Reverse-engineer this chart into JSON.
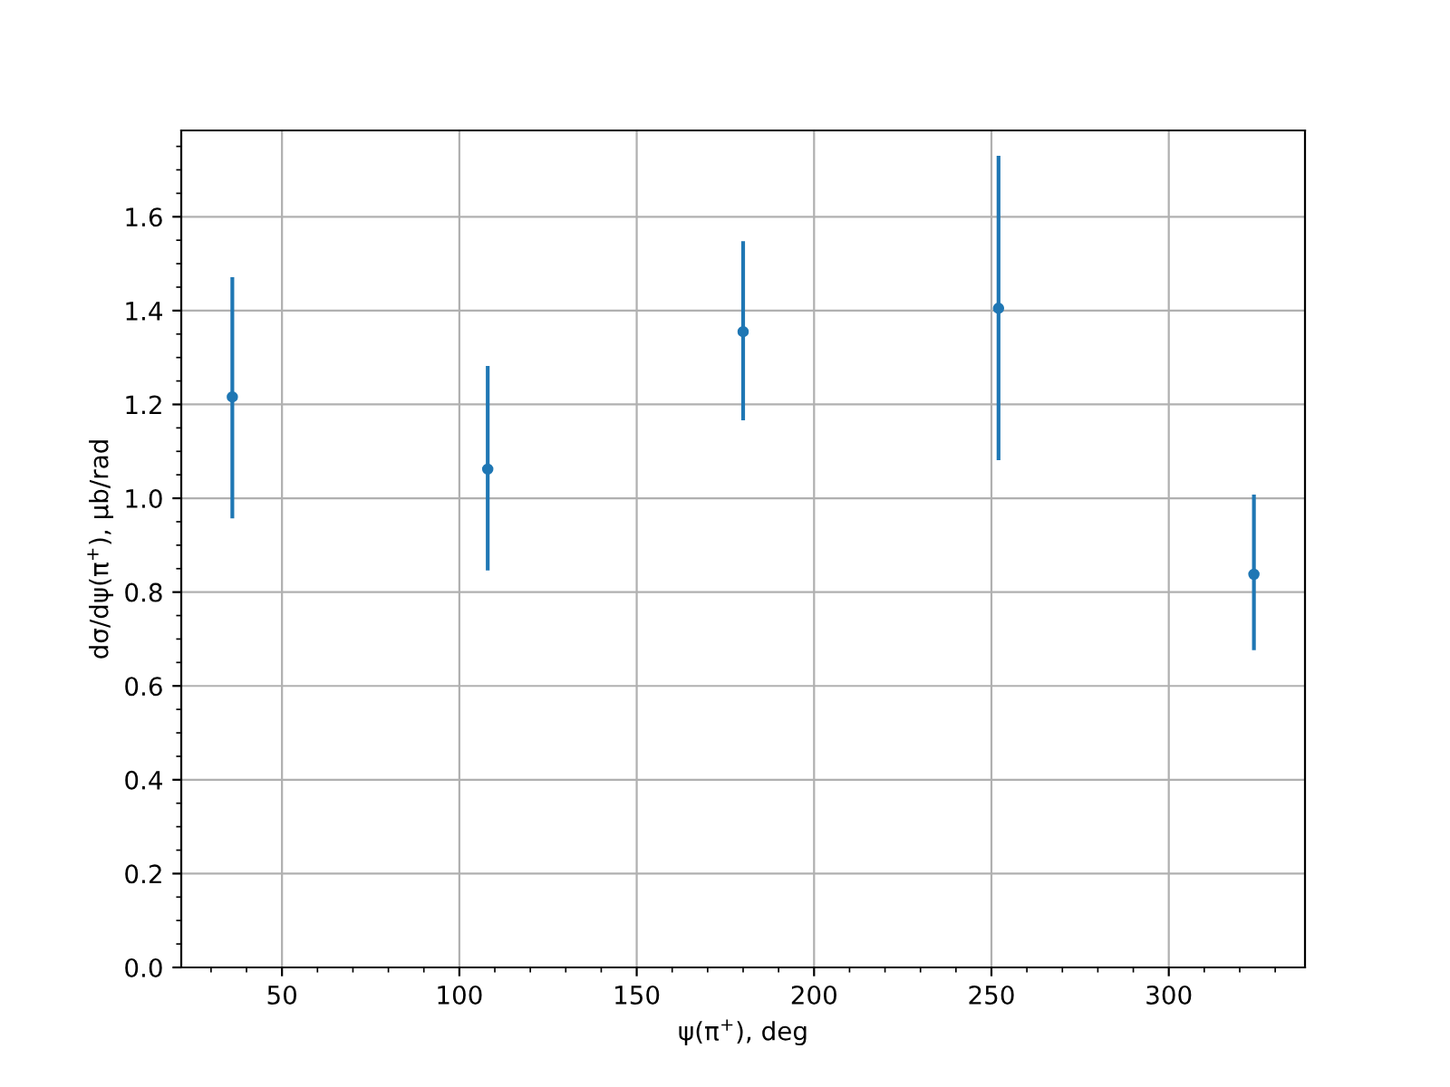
{
  "chart_data": {
    "type": "scatter",
    "xlabel": "ψ(π$^{+}$), deg",
    "ylabel": "dσ/dψ(π$^{+}$), μb/rad",
    "x": [
      36,
      108,
      180,
      252,
      324
    ],
    "series": [
      {
        "color": "#1f77b4",
        "values": [
          1.216,
          1.062,
          1.355,
          1.405,
          0.838
        ],
        "errors": [
          [
            0.957,
            1.471
          ],
          [
            0.846,
            1.282
          ],
          [
            1.166,
            1.548
          ],
          [
            1.081,
            1.73
          ],
          [
            0.676,
            1.008
          ]
        ]
      }
    ],
    "xlim": [
      21.6,
      338.4
    ],
    "ylim": [
      0,
      1.784
    ],
    "xticks": [
      50,
      100,
      150,
      200,
      250,
      300
    ],
    "yticks": [
      {
        "value": 0,
        "label": "0.0"
      },
      0.2,
      0.4,
      0.6,
      0.8,
      {
        "value": 1,
        "label": "1.0"
      },
      1.2,
      1.4,
      1.6
    ],
    "grid": true,
    "marker": "circle"
  }
}
